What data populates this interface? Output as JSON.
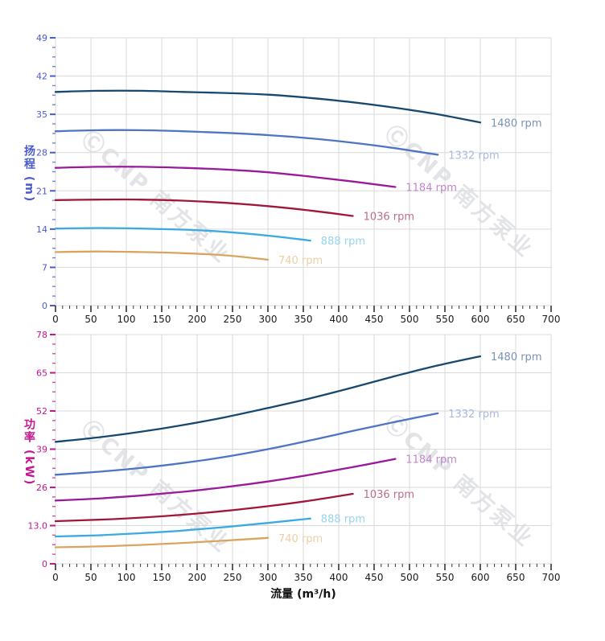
{
  "watermark": {
    "text": "ⒸCNP 南方泵业",
    "color": "#e3e4e8"
  },
  "styles": {
    "grid_color": "#d9d9d9",
    "x_tick_color": "#333333",
    "x_tick_label_color": "#1a1a1a",
    "x_axis_title_color": "#111111",
    "background": "#ffffff"
  },
  "chart_data": [
    {
      "type": "line",
      "title": "",
      "ylabel": "扬程 (m)",
      "xlabel": "",
      "axis_color": "#4a5acd",
      "xlim": [
        0,
        700
      ],
      "ylim": [
        0,
        49
      ],
      "yticks": [
        0,
        7,
        14,
        21,
        28,
        35,
        42,
        49
      ],
      "ytick_labels": [
        "0",
        "7",
        "14",
        "21",
        "28",
        "35",
        "42",
        "49"
      ],
      "y_minor_step": 1.75,
      "xticks": [
        0,
        50,
        100,
        150,
        200,
        250,
        300,
        350,
        400,
        450,
        500,
        550,
        600,
        650,
        700
      ],
      "x_minor_step": 10,
      "grid": true,
      "legend_position": "curve-ends",
      "series": [
        {
          "name": "1480 rpm",
          "color": "#17486f",
          "label_color": "#7a92b5",
          "points": [
            [
              0,
              39.1
            ],
            [
              60,
              39.3
            ],
            [
              120,
              39.3
            ],
            [
              180,
              39.1
            ],
            [
              240,
              38.9
            ],
            [
              300,
              38.6
            ],
            [
              360,
              38.0
            ],
            [
              420,
              37.2
            ],
            [
              480,
              36.2
            ],
            [
              540,
              35.0
            ],
            [
              600,
              33.5
            ]
          ]
        },
        {
          "name": "1332 rpm",
          "color": "#4f74c4",
          "label_color": "#aab8e2",
          "points": [
            [
              0,
              31.9
            ],
            [
              60,
              32.1
            ],
            [
              120,
              32.1
            ],
            [
              180,
              31.9
            ],
            [
              240,
              31.6
            ],
            [
              300,
              31.2
            ],
            [
              360,
              30.6
            ],
            [
              420,
              29.8
            ],
            [
              480,
              28.8
            ],
            [
              540,
              27.6
            ]
          ]
        },
        {
          "name": "1184 rpm",
          "color": "#9a1a9c",
          "label_color": "#bf86c9",
          "points": [
            [
              0,
              25.2
            ],
            [
              60,
              25.4
            ],
            [
              120,
              25.4
            ],
            [
              180,
              25.2
            ],
            [
              240,
              24.9
            ],
            [
              300,
              24.4
            ],
            [
              360,
              23.6
            ],
            [
              420,
              22.7
            ],
            [
              480,
              21.7
            ]
          ]
        },
        {
          "name": "1036 rpm",
          "color": "#a0173a",
          "label_color": "#bd6d85",
          "points": [
            [
              0,
              19.3
            ],
            [
              60,
              19.4
            ],
            [
              120,
              19.4
            ],
            [
              180,
              19.2
            ],
            [
              240,
              18.8
            ],
            [
              300,
              18.2
            ],
            [
              360,
              17.4
            ],
            [
              420,
              16.4
            ]
          ]
        },
        {
          "name": "888 rpm",
          "color": "#3aabe0",
          "label_color": "#97d3f0",
          "points": [
            [
              0,
              14.1
            ],
            [
              60,
              14.2
            ],
            [
              120,
              14.1
            ],
            [
              180,
              13.9
            ],
            [
              240,
              13.5
            ],
            [
              300,
              12.8
            ],
            [
              360,
              11.9
            ]
          ]
        },
        {
          "name": "740 rpm",
          "color": "#d9a55e",
          "label_color": "#eacfa5",
          "points": [
            [
              0,
              9.8
            ],
            [
              60,
              9.9
            ],
            [
              120,
              9.8
            ],
            [
              180,
              9.6
            ],
            [
              240,
              9.2
            ],
            [
              300,
              8.4
            ]
          ]
        }
      ]
    },
    {
      "type": "line",
      "title": "",
      "ylabel": "功率 (kW)",
      "xlabel": "流量 (m³/h)",
      "axis_color": "#c4168e",
      "xlim": [
        0,
        700
      ],
      "ylim": [
        0,
        78
      ],
      "yticks": [
        0,
        13,
        26,
        39,
        52,
        65,
        78
      ],
      "ytick_labels": [
        "0",
        "13.0",
        "26",
        "39",
        "52",
        "65",
        "78"
      ],
      "y_minor_step": 3.25,
      "xticks": [
        0,
        50,
        100,
        150,
        200,
        250,
        300,
        350,
        400,
        450,
        500,
        550,
        600,
        650,
        700
      ],
      "x_minor_step": 10,
      "grid": true,
      "legend_position": "curve-ends",
      "series": [
        {
          "name": "1480 rpm",
          "color": "#17486f",
          "label_color": "#7a92b5",
          "points": [
            [
              0,
              41.5
            ],
            [
              60,
              43.0
            ],
            [
              120,
              44.9
            ],
            [
              180,
              47.2
            ],
            [
              240,
              49.9
            ],
            [
              300,
              53.0
            ],
            [
              360,
              56.3
            ],
            [
              420,
              60.0
            ],
            [
              480,
              63.9
            ],
            [
              540,
              67.5
            ],
            [
              600,
              70.6
            ]
          ]
        },
        {
          "name": "1332 rpm",
          "color": "#4f74c4",
          "label_color": "#aab8e2",
          "points": [
            [
              0,
              30.3
            ],
            [
              60,
              31.3
            ],
            [
              120,
              32.6
            ],
            [
              180,
              34.3
            ],
            [
              240,
              36.4
            ],
            [
              300,
              39.0
            ],
            [
              360,
              42.0
            ],
            [
              420,
              45.2
            ],
            [
              480,
              48.3
            ],
            [
              540,
              51.2
            ]
          ]
        },
        {
          "name": "1184 rpm",
          "color": "#9a1a9c",
          "label_color": "#bf86c9",
          "points": [
            [
              0,
              21.5
            ],
            [
              60,
              22.2
            ],
            [
              120,
              23.2
            ],
            [
              180,
              24.5
            ],
            [
              240,
              26.1
            ],
            [
              300,
              28.0
            ],
            [
              360,
              30.3
            ],
            [
              420,
              32.9
            ],
            [
              480,
              35.7
            ]
          ]
        },
        {
          "name": "1036 rpm",
          "color": "#a0173a",
          "label_color": "#bd6d85",
          "points": [
            [
              0,
              14.5
            ],
            [
              60,
              15.0
            ],
            [
              120,
              15.7
            ],
            [
              180,
              16.7
            ],
            [
              240,
              18.0
            ],
            [
              300,
              19.6
            ],
            [
              360,
              21.5
            ],
            [
              420,
              23.8
            ]
          ]
        },
        {
          "name": "888 rpm",
          "color": "#3aabe0",
          "label_color": "#97d3f0",
          "points": [
            [
              0,
              9.3
            ],
            [
              60,
              9.7
            ],
            [
              120,
              10.4
            ],
            [
              180,
              11.3
            ],
            [
              240,
              12.5
            ],
            [
              300,
              13.9
            ],
            [
              360,
              15.4
            ]
          ]
        },
        {
          "name": "740 rpm",
          "color": "#d9a55e",
          "label_color": "#eacfa5",
          "points": [
            [
              0,
              5.6
            ],
            [
              60,
              5.9
            ],
            [
              120,
              6.4
            ],
            [
              180,
              7.1
            ],
            [
              240,
              7.9
            ],
            [
              300,
              8.8
            ]
          ]
        }
      ]
    }
  ]
}
